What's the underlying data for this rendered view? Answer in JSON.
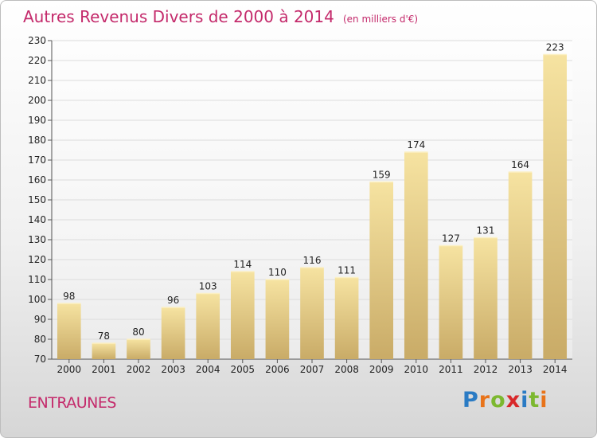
{
  "chart_data": {
    "type": "bar",
    "title": "Autres Revenus Divers de 2000 à 2014",
    "subtitle": "(en milliers d'€)",
    "categories": [
      "2000",
      "2001",
      "2002",
      "2003",
      "2004",
      "2005",
      "2006",
      "2007",
      "2008",
      "2009",
      "2010",
      "2011",
      "2012",
      "2013",
      "2014"
    ],
    "values": [
      98,
      78,
      80,
      96,
      103,
      114,
      110,
      116,
      111,
      159,
      174,
      127,
      131,
      164,
      223
    ],
    "yticks": [
      70,
      80,
      90,
      100,
      110,
      120,
      130,
      140,
      150,
      160,
      170,
      180,
      190,
      200,
      210,
      220,
      230
    ],
    "ylim": [
      70,
      230
    ],
    "grid": true,
    "data_labels": true
  },
  "place_name": "ENTRAUNES",
  "logo": {
    "letters": [
      "P",
      "r",
      "o",
      "x",
      "i",
      "t",
      "i"
    ],
    "colors": [
      "#2a7bc4",
      "#e8731a",
      "#7cb82f",
      "#d8282a",
      "#2a7bc4",
      "#7cb82f",
      "#e8731a"
    ]
  },
  "colors": {
    "accent": "#c42a6b",
    "bar_light": "#f6e3a1",
    "bar_dark": "#c9ab67",
    "grid": "#dcdcdc"
  }
}
